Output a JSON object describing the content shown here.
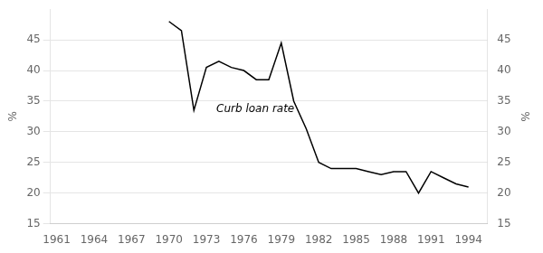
{
  "chart_data": {
    "type": "line",
    "x": [
      1969,
      1970,
      1971,
      1972,
      1973,
      1974,
      1975,
      1976,
      1977,
      1978,
      1979,
      1980,
      1981,
      1982,
      1983,
      1984,
      1985,
      1986,
      1987,
      1988,
      1989,
      1990,
      1991,
      1992,
      1993,
      1994
    ],
    "values": [
      null,
      48.0,
      46.5,
      33.5,
      40.5,
      41.5,
      40.5,
      40.0,
      38.5,
      38.5,
      44.5,
      35.0,
      30.5,
      25.0,
      24.0,
      24.0,
      24.0,
      23.5,
      23.0,
      23.5,
      23.5,
      20.0,
      23.5,
      22.5,
      21.5,
      21.0
    ],
    "color": "#000000",
    "xlim": [
      1960.5,
      1995.5
    ],
    "xticks": [
      1961,
      1964,
      1967,
      1970,
      1973,
      1976,
      1979,
      1982,
      1985,
      1988,
      1991,
      1994
    ],
    "ylim": [
      15,
      50
    ],
    "yticks": [
      15,
      20,
      25,
      30,
      35,
      40,
      45
    ],
    "y2lim": [
      15,
      50
    ],
    "y2ticks": [
      15,
      20,
      25,
      30,
      35,
      40,
      45
    ],
    "ylabel": "%",
    "y2label": "%",
    "grid": true,
    "annotations": [
      {
        "text": "Curb loan rate",
        "x": 1973.8,
        "y": 33.2
      }
    ]
  }
}
